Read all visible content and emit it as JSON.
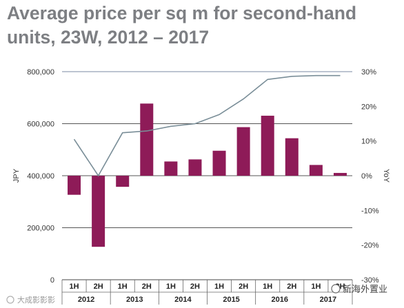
{
  "chart_data": {
    "type": "bar",
    "title": "Average price per sq m for second-hand units, 23W, 2012 – 2017",
    "ylabel": "JPY",
    "y2label": "YoY",
    "categories": [
      "1H",
      "2H",
      "1H",
      "2H",
      "1H",
      "2H",
      "1H",
      "2H",
      "1H",
      "2H",
      "1H",
      "2H"
    ],
    "years": [
      {
        "label": "2012",
        "span": 2
      },
      {
        "label": "2013",
        "span": 2
      },
      {
        "label": "2014",
        "span": 2
      },
      {
        "label": "2015",
        "span": 2
      },
      {
        "label": "2016",
        "span": 2
      },
      {
        "label": "2017",
        "span": 2
      }
    ],
    "ylim": [
      0,
      800000
    ],
    "yticks": [
      0,
      200000,
      400000,
      600000,
      800000
    ],
    "ytick_labels": [
      "0",
      "200,000",
      "400,000",
      "600,000",
      "800,000"
    ],
    "y2lim": [
      -30,
      30
    ],
    "y2ticks": [
      -30,
      -20,
      -10,
      0,
      10,
      20,
      30
    ],
    "y2tick_labels": [
      "-30%",
      "-20%",
      "-10%",
      "0%",
      "10%",
      "20%",
      "30%"
    ],
    "series": [
      {
        "type": "bar",
        "axis": "right",
        "color": "#8e1b58",
        "values": [
          -5.5,
          -20.5,
          -3.2,
          20.8,
          4.1,
          4.7,
          7.2,
          14.0,
          17.3,
          10.8,
          3.1,
          0.8
        ]
      },
      {
        "type": "line",
        "axis": "left",
        "color": "#7a8e98",
        "values": [
          540000,
          400000,
          565000,
          572000,
          590000,
          600000,
          635000,
          695000,
          770000,
          782000,
          785000,
          785000
        ]
      }
    ],
    "grid": true,
    "legend": "none"
  },
  "watermarks": {
    "left": "大成影影影",
    "right": "新海外置业"
  }
}
